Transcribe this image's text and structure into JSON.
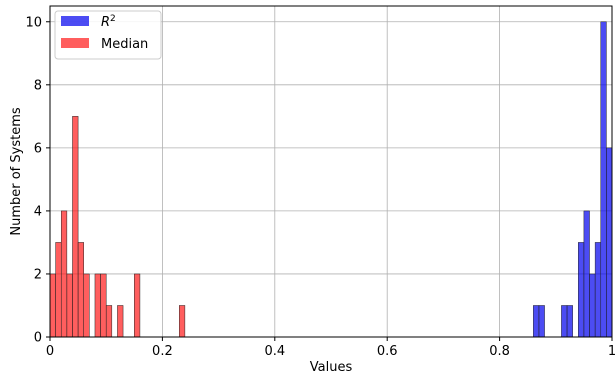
{
  "chart_data": {
    "type": "bar",
    "xlabel": "Values",
    "ylabel": "Number of Systems",
    "xlim": [
      0,
      1
    ],
    "ylim": [
      0,
      10.5
    ],
    "grid": true,
    "legend_position": "top-left",
    "bin_width": 0.01,
    "x_ticks": [
      "0",
      "0.2",
      "0.4",
      "0.6",
      "0.8",
      "1"
    ],
    "x_tick_values": [
      0,
      0.2,
      0.4,
      0.6,
      0.8,
      1.0
    ],
    "y_ticks": [
      "0",
      "2",
      "4",
      "6",
      "8",
      "10"
    ],
    "y_tick_values": [
      0,
      2,
      4,
      6,
      8,
      10
    ],
    "series": [
      {
        "name": "R²",
        "legend_main": "R",
        "legend_sup": "2",
        "color": "#0000ee",
        "bins": [
          {
            "x": 0.865,
            "count": 1
          },
          {
            "x": 0.875,
            "count": 1
          },
          {
            "x": 0.915,
            "count": 1
          },
          {
            "x": 0.925,
            "count": 1
          },
          {
            "x": 0.945,
            "count": 3
          },
          {
            "x": 0.955,
            "count": 4
          },
          {
            "x": 0.965,
            "count": 2
          },
          {
            "x": 0.975,
            "count": 3
          },
          {
            "x": 0.985,
            "count": 10
          },
          {
            "x": 0.995,
            "count": 6
          }
        ]
      },
      {
        "name": "Median",
        "color": "#ff1a1a",
        "bins": [
          {
            "x": 0.005,
            "count": 2
          },
          {
            "x": 0.015,
            "count": 3
          },
          {
            "x": 0.025,
            "count": 4
          },
          {
            "x": 0.035,
            "count": 2
          },
          {
            "x": 0.045,
            "count": 7
          },
          {
            "x": 0.055,
            "count": 3
          },
          {
            "x": 0.065,
            "count": 2
          },
          {
            "x": 0.085,
            "count": 2
          },
          {
            "x": 0.095,
            "count": 2
          },
          {
            "x": 0.105,
            "count": 1
          },
          {
            "x": 0.125,
            "count": 1
          },
          {
            "x": 0.155,
            "count": 2
          },
          {
            "x": 0.235,
            "count": 1
          }
        ]
      }
    ]
  }
}
